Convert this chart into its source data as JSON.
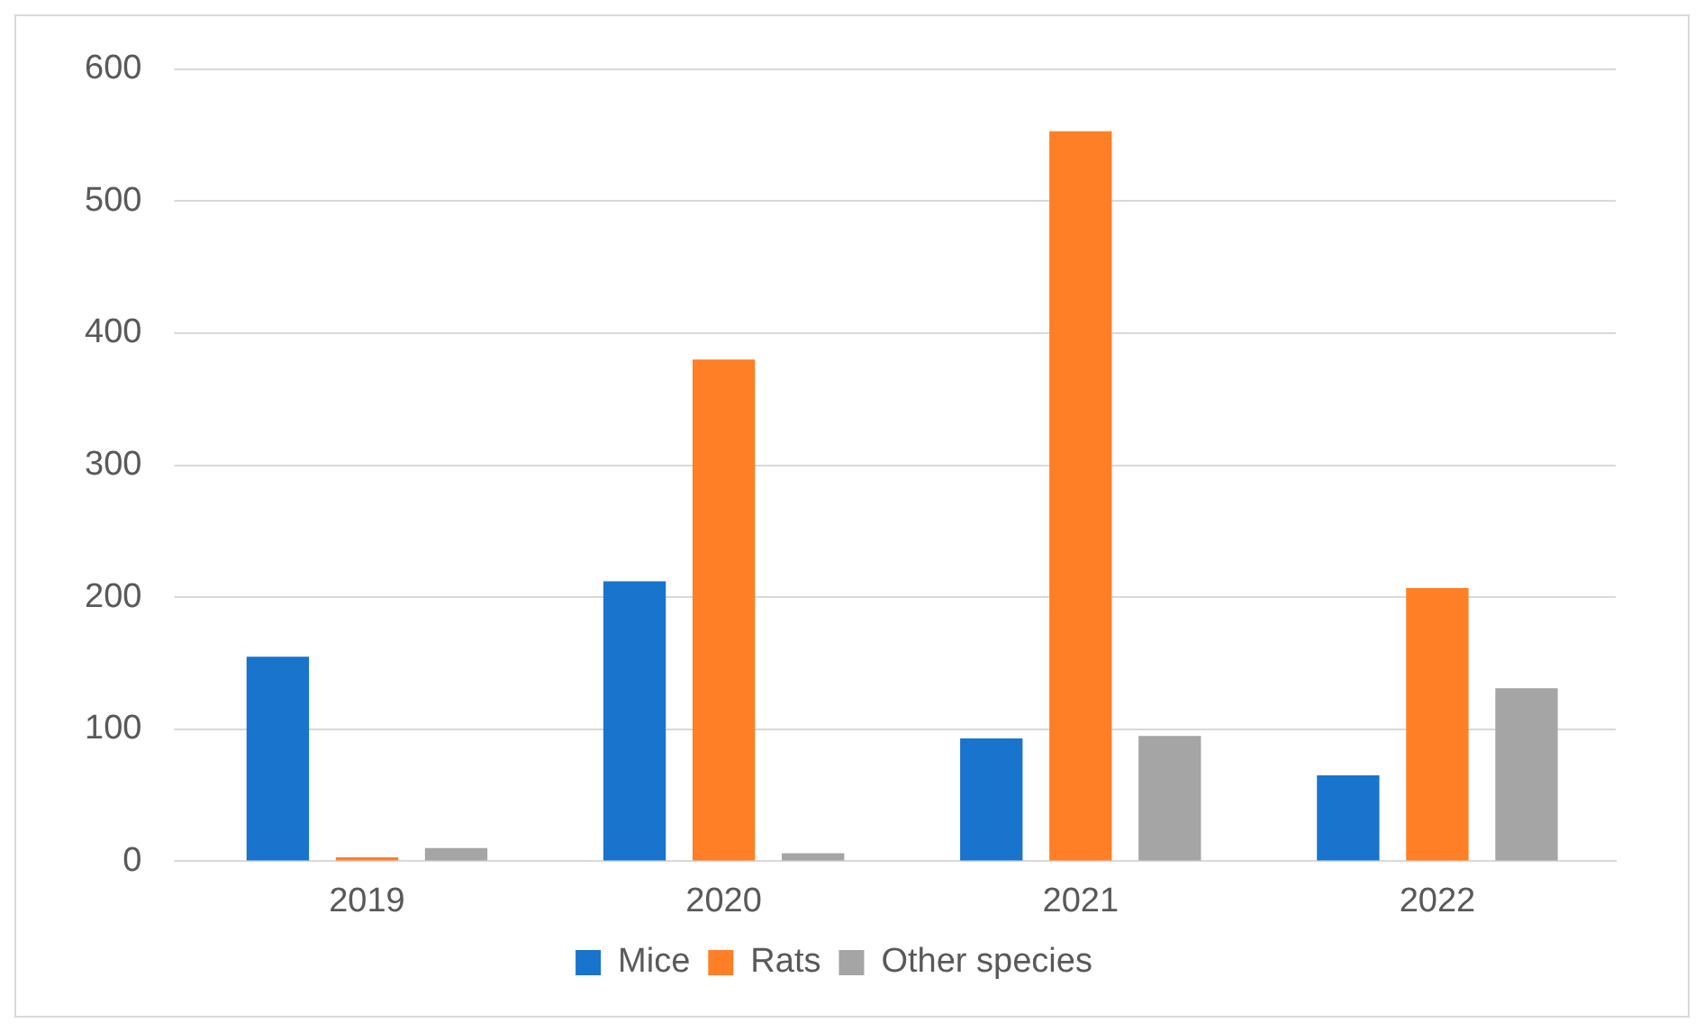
{
  "chart_data": {
    "type": "bar",
    "categories": [
      "2019",
      "2020",
      "2021",
      "2022"
    ],
    "series": [
      {
        "name": "Mice",
        "color": "#1874cd",
        "values": [
          155,
          212,
          93,
          65
        ]
      },
      {
        "name": "Rats",
        "color": "#ff7f27",
        "values": [
          3,
          380,
          553,
          207
        ]
      },
      {
        "name": "Other species",
        "color": "#a5a5a5",
        "values": [
          10,
          6,
          95,
          131
        ]
      }
    ],
    "ylim": [
      0,
      600
    ],
    "yticks": [
      0,
      100,
      200,
      300,
      400,
      500,
      600
    ],
    "grid": "y",
    "legend": "bottom"
  }
}
